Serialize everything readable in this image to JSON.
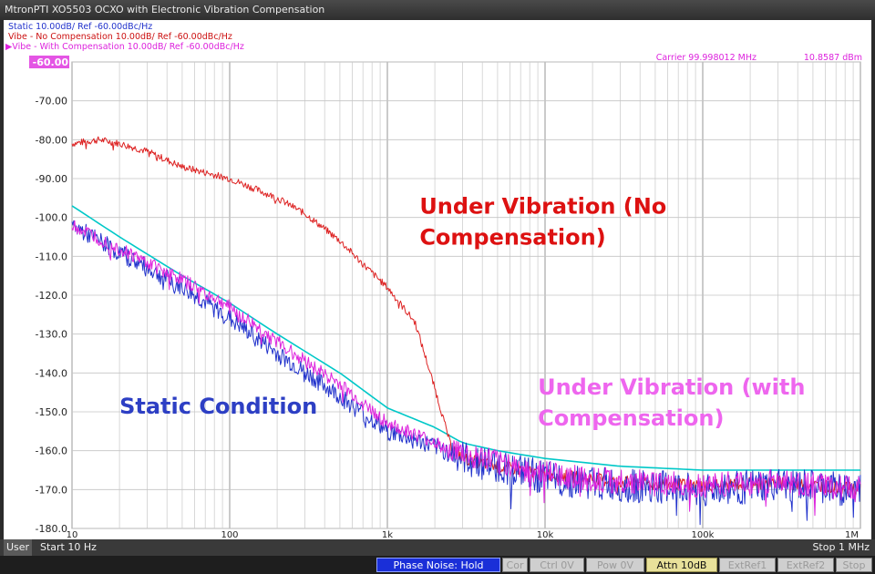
{
  "window": {
    "title": "MtronPTI XO5503 OCXO with Electronic Vibration Compensation"
  },
  "trace_headers": [
    {
      "text": "Static 10.00dB/ Ref -60.00dBc/Hz",
      "color": "#2233cc"
    },
    {
      "text": "Vibe - No Compensation 10.00dB/ Ref -60.00dBc/Hz",
      "color": "#cc1111"
    },
    {
      "text": "▶Vibe - With Compensation 10.00dB/ Ref -60.00dBc/Hz",
      "color": "#dd22dd"
    }
  ],
  "carrier": {
    "label": "Carrier 99.998012 MHz",
    "power": "10.8587 dBm",
    "color": "#dd22dd"
  },
  "status": {
    "mode": "User",
    "start": "Start 10 Hz",
    "stop": "Stop 1 MHz"
  },
  "softkeys": [
    {
      "label": "Phase Noise: Hold",
      "state": "active"
    },
    {
      "label": "Cor",
      "state": "off"
    },
    {
      "label": "Ctrl  0V",
      "state": "off"
    },
    {
      "label": "Pow  0V",
      "state": "off"
    },
    {
      "label": "Attn 10dB",
      "state": "highlight"
    },
    {
      "label": "ExtRef1",
      "state": "off"
    },
    {
      "label": "ExtRef2",
      "state": "off"
    },
    {
      "label": "Stop",
      "state": "off"
    }
  ],
  "chart_data": {
    "type": "line",
    "x_scale": "log",
    "xlim": [
      10,
      1000000
    ],
    "ylim": [
      -180,
      -60
    ],
    "grid": true,
    "xticks": [
      {
        "value": 10,
        "label": "10"
      },
      {
        "value": 100,
        "label": "100"
      },
      {
        "value": 1000,
        "label": "1k"
      },
      {
        "value": 10000,
        "label": "10k"
      },
      {
        "value": 100000,
        "label": "100k"
      },
      {
        "value": 1000000,
        "label": "1M"
      }
    ],
    "yticks": [
      {
        "value": -60,
        "label": "-60.00"
      },
      {
        "value": -70,
        "label": "-70.00"
      },
      {
        "value": -80,
        "label": "-80.00"
      },
      {
        "value": -90,
        "label": "-90.00"
      },
      {
        "value": -100,
        "label": "-100.0"
      },
      {
        "value": -110,
        "label": "-110.0"
      },
      {
        "value": -120,
        "label": "-120.0"
      },
      {
        "value": -130,
        "label": "-130.0"
      },
      {
        "value": -140,
        "label": "-140.0"
      },
      {
        "value": -150,
        "label": "-150.0"
      },
      {
        "value": -160,
        "label": "-160.0"
      },
      {
        "value": -170,
        "label": "-170.0"
      },
      {
        "value": -180,
        "label": "-180.0"
      }
    ],
    "series": [
      {
        "color": "#00c8c8",
        "noise": 0,
        "x": [
          10,
          20,
          50,
          100,
          200,
          500,
          1000,
          2000,
          3000,
          5000,
          10000,
          30000,
          100000,
          300000,
          1000000
        ],
        "y": [
          -97,
          -105,
          -115,
          -122,
          -130,
          -140,
          -149,
          -154,
          -158,
          -160,
          -162,
          -164,
          -165,
          -165,
          -165
        ]
      },
      {
        "color": "#2233cc",
        "noise": 4,
        "x": [
          10,
          20,
          50,
          100,
          200,
          500,
          1000,
          2000,
          3000,
          5000,
          10000,
          30000,
          100000,
          300000,
          1000000
        ],
        "y": [
          -102,
          -109,
          -118,
          -126,
          -135,
          -146,
          -155,
          -159,
          -162,
          -164,
          -167,
          -169,
          -170,
          -169,
          -170
        ]
      },
      {
        "color": "#dd22dd",
        "noise": 3,
        "x": [
          10,
          20,
          50,
          100,
          200,
          500,
          1000,
          2000,
          3000,
          5000,
          10000,
          30000,
          100000,
          300000,
          1000000
        ],
        "y": [
          -102,
          -108,
          -116,
          -123,
          -132,
          -143,
          -153,
          -158,
          -161,
          -163,
          -166,
          -168,
          -169,
          -168,
          -170
        ]
      },
      {
        "color": "#dd2222",
        "noise": 1.5,
        "x": [
          10,
          15,
          20,
          30,
          50,
          100,
          200,
          300,
          500,
          700,
          1000,
          1500,
          2000,
          2500,
          3000,
          5000,
          10000,
          30000,
          100000,
          300000,
          1000000
        ],
        "y": [
          -81,
          -80,
          -81,
          -83,
          -87,
          -90,
          -95,
          -99,
          -106,
          -112,
          -118,
          -127,
          -144,
          -158,
          -162,
          -164,
          -166,
          -168,
          -169,
          -168,
          -170
        ]
      }
    ],
    "annotations": [
      {
        "text": "Under Vibration (No",
        "x": 1600,
        "y": -99,
        "color": "#dd1111"
      },
      {
        "text": "Compensation)",
        "x": 1600,
        "y": -107,
        "color": "#dd1111"
      },
      {
        "text": "Static Condition",
        "x": 20,
        "y": -150.5,
        "color": "#2d3fc4"
      },
      {
        "text": "Under Vibration (with",
        "x": 9000,
        "y": -145.5,
        "color": "#ee66ee"
      },
      {
        "text": "Compensation)",
        "x": 9000,
        "y": -153.5,
        "color": "#ee66ee"
      }
    ]
  }
}
